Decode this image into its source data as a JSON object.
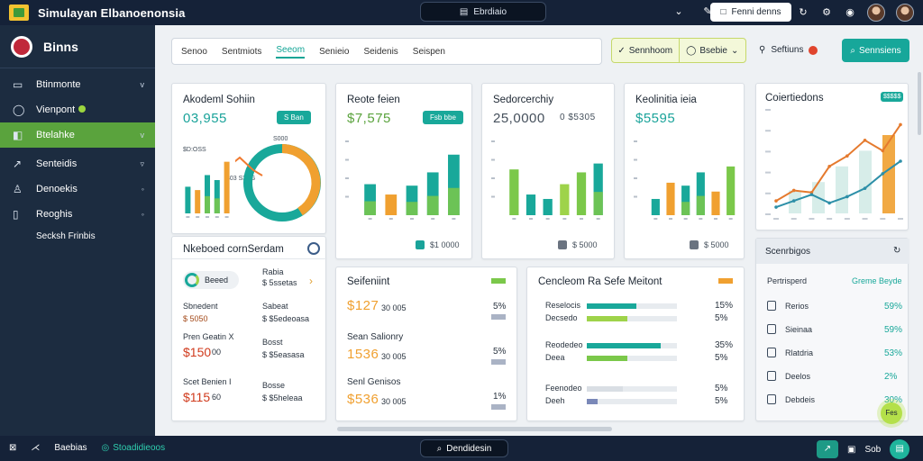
{
  "app": {
    "title": "Simulayan Elbanoenonsia",
    "search_label": "Ebrdiaio",
    "action_label": "Fenni denns"
  },
  "sidebar": {
    "brand": "Binns",
    "items": [
      {
        "label": "Btinmonte",
        "icon": "document-icon",
        "chev": "v"
      },
      {
        "label": "Vienpont",
        "icon": "circle-icon",
        "chev": ""
      },
      {
        "label": "Btelahke",
        "icon": "shield-icon",
        "chev": "v"
      },
      {
        "label": "Senteidis",
        "icon": "link-icon",
        "chev": "▿"
      },
      {
        "label": "Denoekis",
        "icon": "chat-icon",
        "chev": "◦"
      },
      {
        "label": "Reoghis",
        "icon": "book-icon",
        "chev": "◦"
      }
    ],
    "footer": "Secksh Frinbis"
  },
  "filters": {
    "tabs": [
      "Senoo",
      "Sentmiots",
      "Seeom",
      "Senieio",
      "Seidenis",
      "Seispen"
    ]
  },
  "btn_group": {
    "left": "Sennhoom",
    "right": "Bsebie"
  },
  "settings": "Seftiuns",
  "primary": "Sennsiens",
  "cards": {
    "c1": {
      "title": "Akodeml Sohiin",
      "kpi": "03,955",
      "chip": "S Ban",
      "labels": [
        "$D:OSS",
        "$03 S3AG",
        "S000"
      ]
    },
    "c2": {
      "title": "Reote feien",
      "kpi": "$7,575",
      "chip": "Fsb bbe",
      "footer": "$1 0000"
    },
    "c3": {
      "title": "Sedorcerchiy",
      "kpi": "25,0000",
      "kpi2": "0 $5305",
      "footer": "$ 5000"
    },
    "c4": {
      "title": "Keolinitia ieia",
      "kpi": "$5595",
      "footer": "$ 5000"
    },
    "c5": {
      "title": "Coiertiedons",
      "chip": "$$$$$"
    },
    "recent": {
      "title": "Nkeboed cornSerdam",
      "rows": [
        {
          "left": "Beeed",
          "right_title": "Rabia",
          "right_sub": "$ 5ssetas"
        },
        {
          "left_title": "Sbnedent",
          "left_val": "$ 5050",
          "right_title": "Sabeat",
          "right_sub": "$ $5edeoasa"
        },
        {
          "left_title": "Pren Geatin X",
          "left_val": "$150",
          "left_suffix": "00",
          "right_title": "Bosst",
          "right_sub": "$ $5easasa"
        },
        {
          "left_title": "Scet Benien I",
          "left_val": "$115",
          "left_suffix": "60",
          "right_title": "Bosse",
          "right_sub": "$ $5heleaa"
        }
      ]
    },
    "salesmix": {
      "title": "Seifeniint",
      "rows": [
        {
          "big": "$127",
          "small": "30 005",
          "pct": "5%"
        },
        {
          "title": "Sean Salionry",
          "big": "1536",
          "small": "30 005",
          "pct": "5%"
        },
        {
          "title": "Senl Genisos",
          "big": "$536",
          "small": "30 005",
          "pct": "1%"
        }
      ]
    },
    "conversion": {
      "title": "Cencleom Ra Sefe Meitont",
      "rows": [
        {
          "label": "Reselocis",
          "pct": "15%",
          "value": 0.55,
          "color": "#19a89a"
        },
        {
          "label": "Decsedo",
          "pct": "5%",
          "value": 0.45,
          "color": "#9ed34a"
        },
        {
          "label": "Reodedeo",
          "pct": "35%",
          "value": 0.82,
          "color": "#19a89a"
        },
        {
          "label": "Deea",
          "pct": "5%",
          "value": 0.45,
          "color": "#7bc84a"
        },
        {
          "label": "Feenodeo",
          "pct": "5%",
          "value": 0.4,
          "color": "#d9dee4"
        },
        {
          "label": "Deeh",
          "pct": "5%",
          "value": 0.12,
          "color": "#7a88b8"
        }
      ]
    },
    "sidepanel": {
      "title": "Scenrbigos",
      "header_left": "Pertrisperd",
      "header_right": "Greme Beyde",
      "rows": [
        {
          "label": "Rerios",
          "pct": "59%"
        },
        {
          "label": "Sieinaa",
          "pct": "59%"
        },
        {
          "label": "Rlatdria",
          "pct": "53%"
        },
        {
          "label": "Deelos",
          "pct": "2%"
        },
        {
          "label": "Debdeis",
          "pct": "30%"
        }
      ],
      "fab": "Fes"
    }
  },
  "bottom": {
    "left_label": "Baebias",
    "status": "Stoadidieoos",
    "pill": "Dendidesin",
    "right": "Sob"
  },
  "colors": {
    "teal": "#19a89a",
    "green": "#7bc84a",
    "orange": "#f0a030",
    "navy": "#152238"
  },
  "chart_data": [
    {
      "type": "bar",
      "categories": [
        "a",
        "b",
        "c",
        "d",
        "e"
      ],
      "series": [
        {
          "values": [
            32,
            28,
            46,
            40,
            62
          ]
        }
      ]
    },
    {
      "type": "bar",
      "categories": [
        "a",
        "b",
        "c",
        "d",
        "e"
      ],
      "series": [
        {
          "values": [
            42,
            28,
            40,
            58,
            82
          ]
        }
      ]
    },
    {
      "type": "bar",
      "categories": [
        "a",
        "b",
        "c",
        "d",
        "e",
        "f"
      ],
      "series": [
        {
          "values": [
            62,
            28,
            22,
            42,
            58,
            70
          ]
        }
      ]
    },
    {
      "type": "bar",
      "categories": [
        "a",
        "b",
        "c",
        "d",
        "e",
        "f"
      ],
      "series": [
        {
          "values": [
            22,
            44,
            40,
            58,
            32,
            66
          ]
        }
      ]
    },
    {
      "type": "line",
      "x": [
        1,
        2,
        3,
        4,
        5,
        6,
        7,
        8
      ],
      "series": [
        {
          "values": [
            12,
            22,
            20,
            45,
            55,
            70,
            60,
            85
          ]
        },
        {
          "values": [
            6,
            12,
            18,
            10,
            16,
            24,
            38,
            50
          ]
        }
      ]
    }
  ]
}
